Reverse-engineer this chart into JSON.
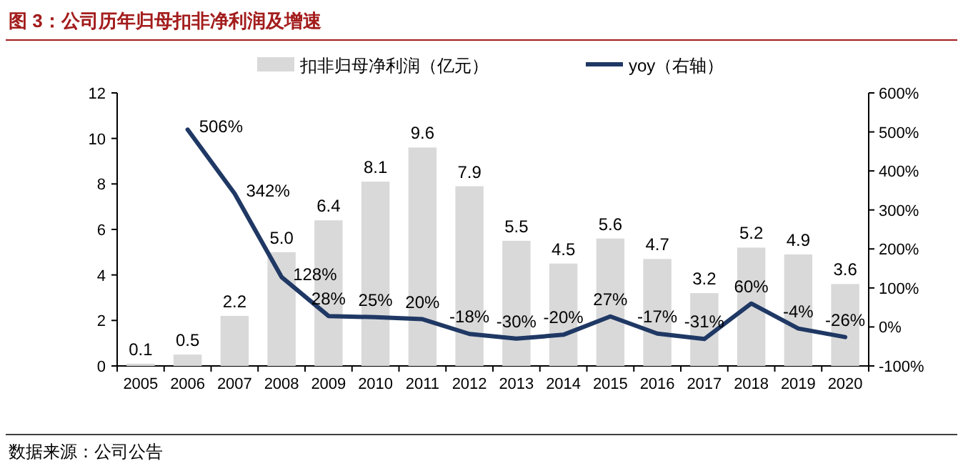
{
  "chart_data": {
    "type": "bar",
    "title": "图 3：公司历年归母扣非净利润及增速",
    "categories": [
      "2005",
      "2006",
      "2007",
      "2008",
      "2009",
      "2010",
      "2011",
      "2012",
      "2013",
      "2014",
      "2015",
      "2016",
      "2017",
      "2018",
      "2019",
      "2020"
    ],
    "series": [
      {
        "name": "扣非归母净利润（亿元）",
        "color": "#d9d9d9",
        "values": [
          0.1,
          0.5,
          2.2,
          5.0,
          6.4,
          8.1,
          9.6,
          7.9,
          5.5,
          4.5,
          5.6,
          4.7,
          3.2,
          5.2,
          4.9,
          3.6
        ],
        "value_labels": [
          "0.1",
          "0.5",
          "2.2",
          "5.0",
          "6.4",
          "8.1",
          "9.6",
          "7.9",
          "5.5",
          "4.5",
          "5.6",
          "4.7",
          "3.2",
          "5.2",
          "4.9",
          "3.6"
        ]
      },
      {
        "name": "yoy（右轴）",
        "type": "line",
        "axis": "y2",
        "color": "#1f3864",
        "values": [
          null,
          506,
          342,
          128,
          28,
          25,
          20,
          -18,
          -30,
          -20,
          27,
          -17,
          -31,
          60,
          -4,
          -26
        ],
        "value_labels": [
          null,
          "506%",
          "342%",
          "128%",
          "28%",
          "25%",
          "20%",
          "-18%",
          "-30%",
          "-20%",
          "27%",
          "-17%",
          "-31%",
          "60%",
          "-4%",
          "-26%"
        ]
      }
    ],
    "ylim": [
      0,
      12
    ],
    "yticks": [
      0,
      2,
      4,
      6,
      8,
      10,
      12
    ],
    "y2lim": [
      -100,
      600
    ],
    "y2ticks": [
      {
        "value": -100,
        "label": "-100%"
      },
      {
        "value": 0,
        "label": "0%"
      },
      {
        "value": 100,
        "label": "100%"
      },
      {
        "value": 200,
        "label": "200%"
      },
      {
        "value": 300,
        "label": "300%"
      },
      {
        "value": 400,
        "label": "400%"
      },
      {
        "value": 500,
        "label": "500%"
      },
      {
        "value": 600,
        "label": "600%"
      }
    ],
    "legend": "top",
    "grid": false,
    "annotations": [
      "数据来源：公司公告"
    ]
  }
}
